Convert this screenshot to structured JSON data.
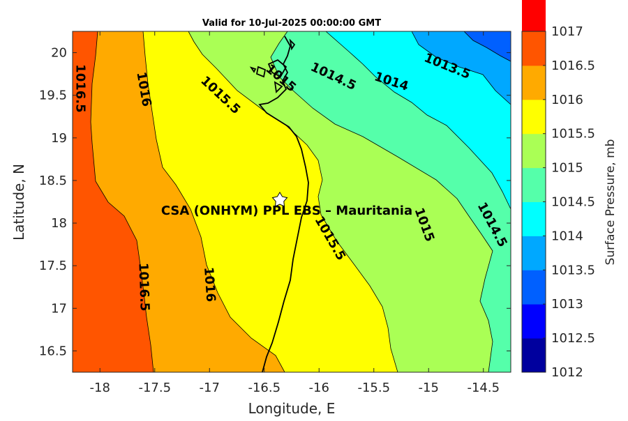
{
  "title": "Valid for 10-Jul-2025 00:00:00 GMT",
  "xlabel": "Longitude, E",
  "ylabel": "Latitude, N",
  "colorbar_label": "Surface Pressure, mb",
  "site_label": "CSA (ONHYM) PPL EBS  – Mauritania",
  "site_marker": {
    "lon": -16.33,
    "lat": 18.28,
    "icon": "star-icon"
  },
  "x_ticks": [
    "-18",
    "-17.5",
    "-17",
    "-16.5",
    "-16",
    "-15.5",
    "-15",
    "-14.5"
  ],
  "y_ticks": [
    "16.5",
    "17",
    "17.5",
    "18",
    "18.5",
    "19",
    "19.5",
    "20"
  ],
  "colorbar_ticks": [
    "1012",
    "1012.5",
    "1013",
    "1013.5",
    "1014",
    "1014.5",
    "1015",
    "1015.5",
    "1016",
    "1016.5",
    "1017"
  ],
  "chart_data": {
    "type": "heatmap",
    "title": "Valid for 10-Jul-2025 00:00:00 GMT",
    "xlabel": "Longitude, E",
    "ylabel": "Latitude, N",
    "xlim": [
      -18.25,
      -14.25
    ],
    "ylim": [
      16.25,
      20.25
    ],
    "colorbar": {
      "label": "Surface Pressure, mb",
      "range": [
        1012,
        1017
      ],
      "levels": [
        1012,
        1012.5,
        1013,
        1013.5,
        1014,
        1014.5,
        1015,
        1015.5,
        1016,
        1016.5,
        1017
      ],
      "colors": [
        "#00009e",
        "#0000ff",
        "#0060ff",
        "#00a8ff",
        "#00ffff",
        "#55ffaa",
        "#aaff55",
        "#ffff00",
        "#ffaa00",
        "#ff5500",
        "#ff0000"
      ]
    },
    "contour_labels": [
      {
        "text": "1016.5",
        "lon": -18.18,
        "lat": 19.58,
        "rotate": 90
      },
      {
        "text": "1016",
        "lon": -17.6,
        "lat": 19.57,
        "rotate": 80
      },
      {
        "text": "1015.5",
        "lon": -16.9,
        "lat": 19.5,
        "rotate": 43
      },
      {
        "text": "1015",
        "lon": -16.35,
        "lat": 19.7,
        "rotate": 40
      },
      {
        "text": "1014.5",
        "lon": -15.87,
        "lat": 19.72,
        "rotate": 25
      },
      {
        "text": "1014",
        "lon": -15.34,
        "lat": 19.66,
        "rotate": 18
      },
      {
        "text": "1013.5",
        "lon": -14.83,
        "lat": 19.84,
        "rotate": 22
      },
      {
        "text": "1016.5",
        "lon": -17.6,
        "lat": 17.25,
        "rotate": 88
      },
      {
        "text": "1016",
        "lon": -17.0,
        "lat": 17.28,
        "rotate": 86
      },
      {
        "text": "1015.5",
        "lon": -15.9,
        "lat": 17.82,
        "rotate": 60
      },
      {
        "text": "1015",
        "lon": -15.04,
        "lat": 17.98,
        "rotate": 70
      },
      {
        "text": "1014.5",
        "lon": -14.42,
        "lat": 17.98,
        "rotate": 62
      }
    ]
  }
}
